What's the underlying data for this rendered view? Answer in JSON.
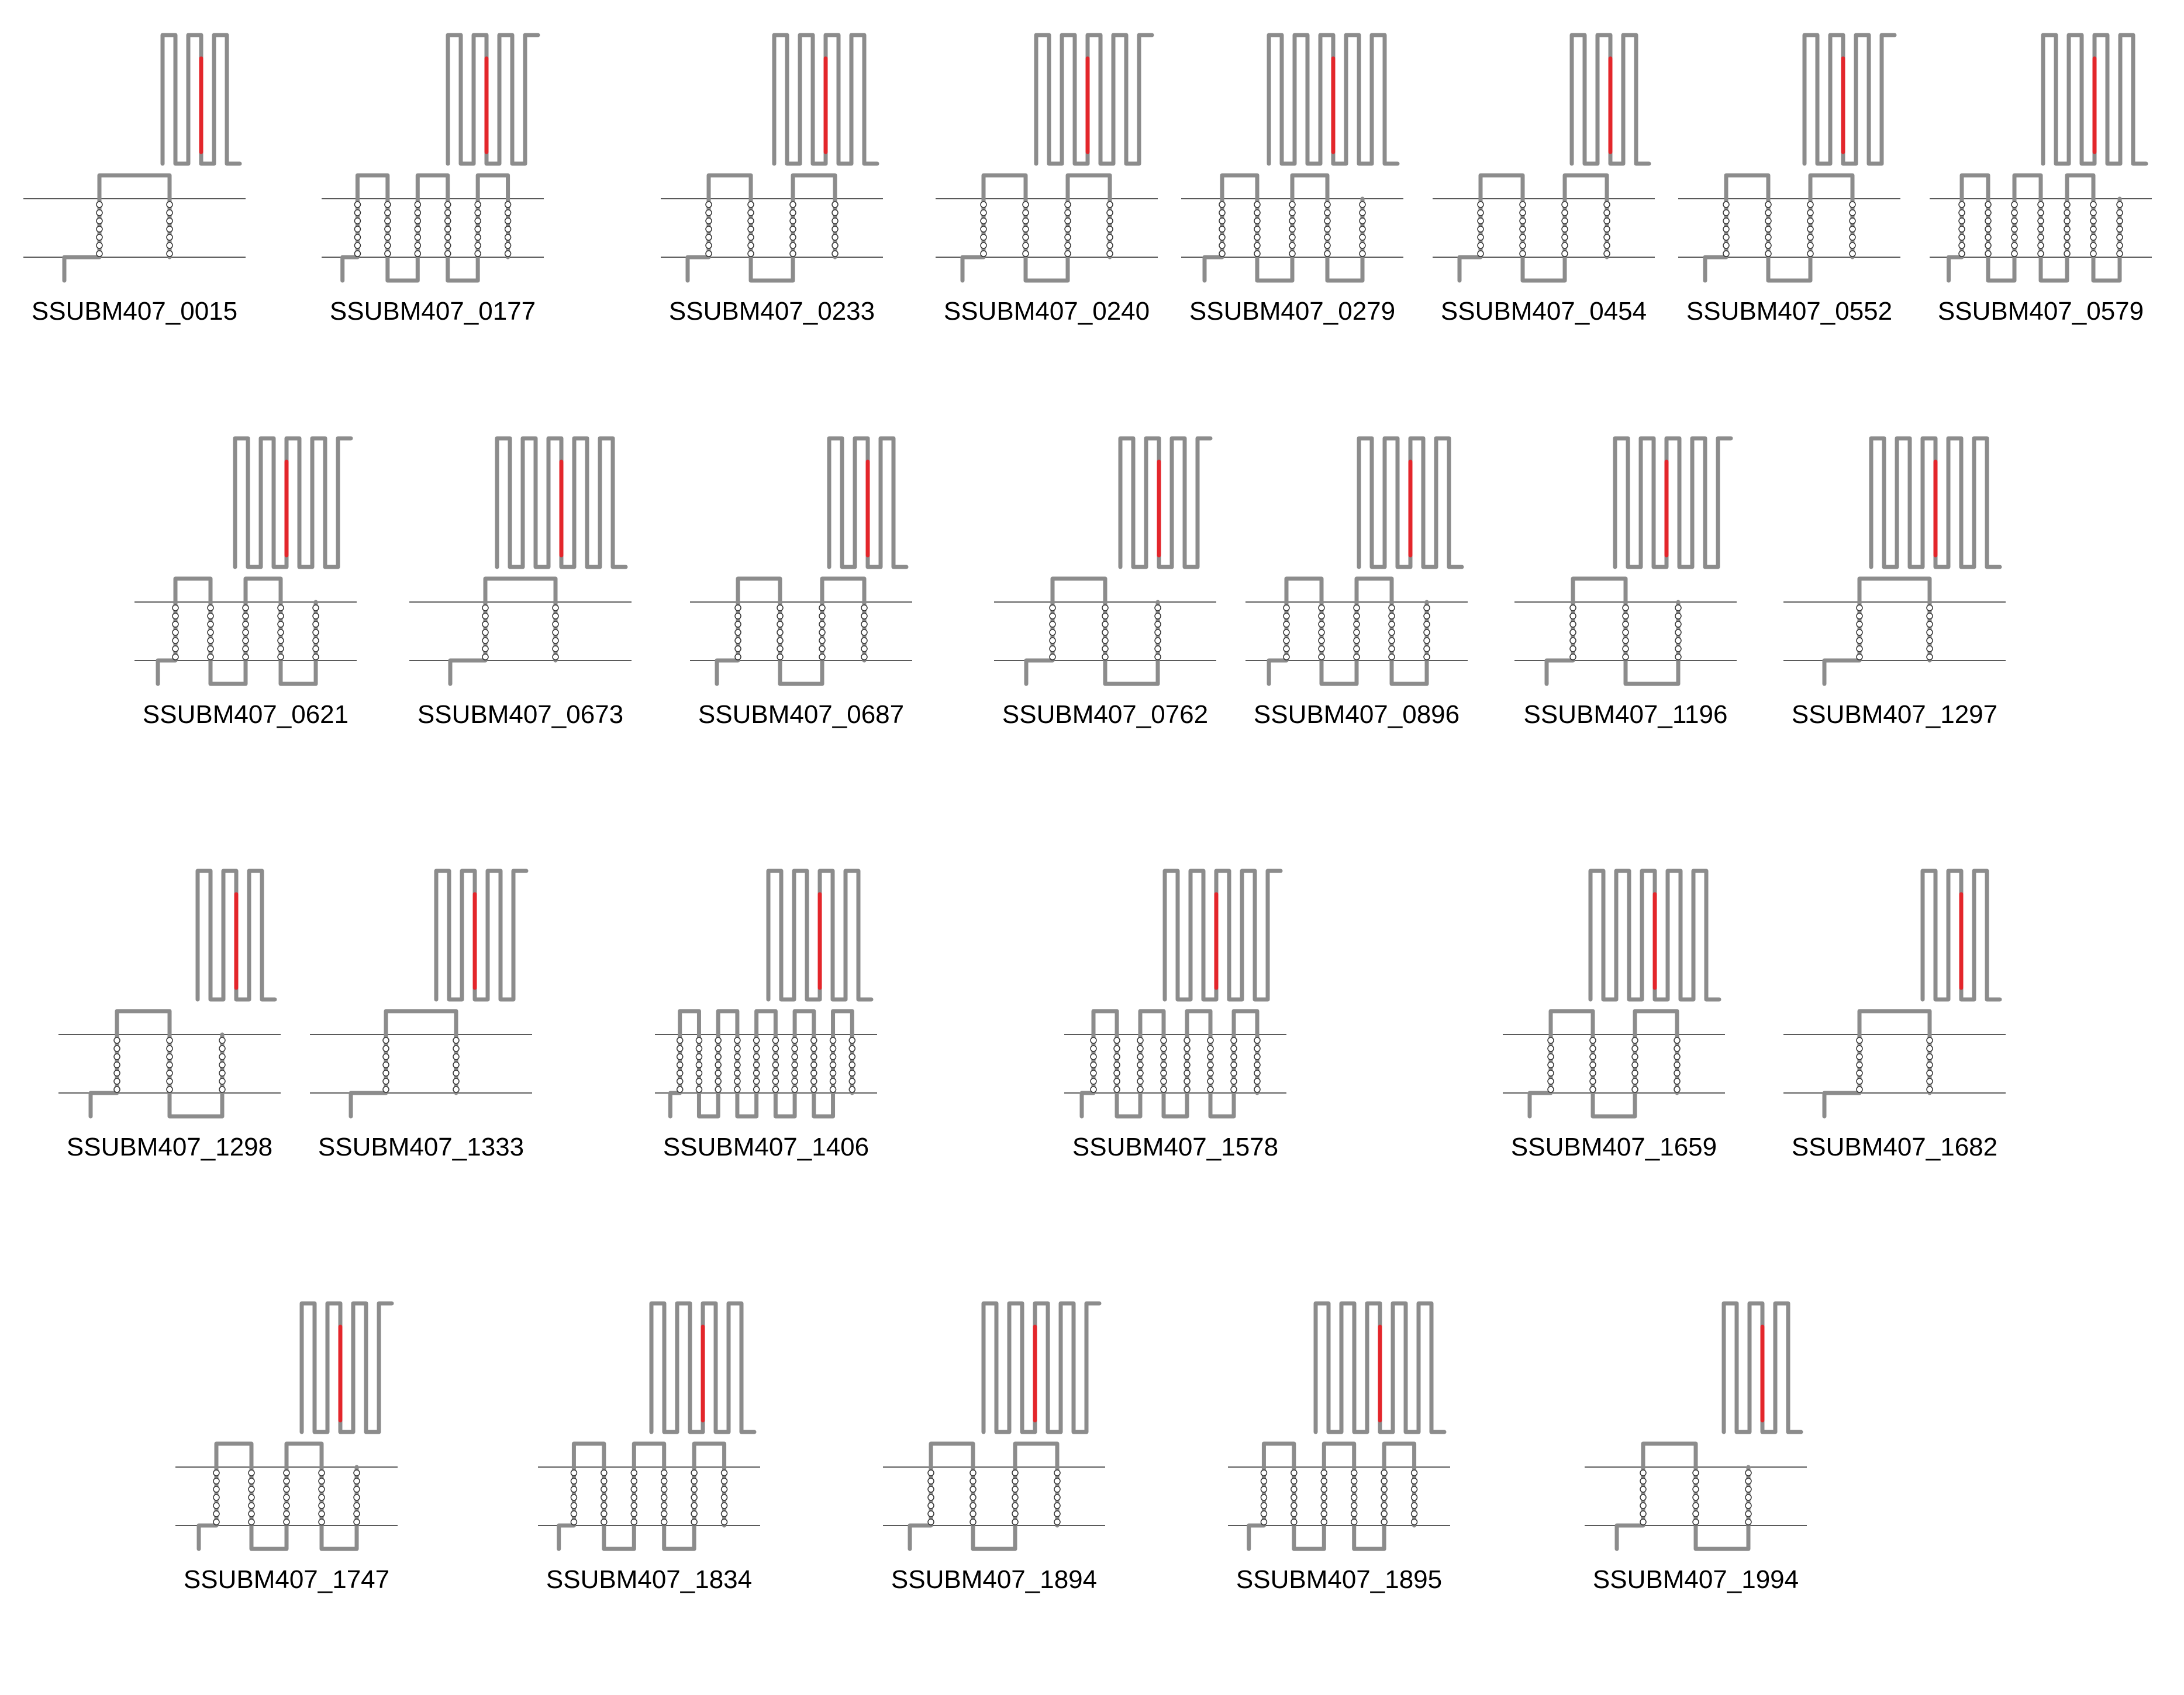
{
  "figure": {
    "description_free": true,
    "colors": {
      "residue": "#8c8c8c",
      "highlight": "#e3262b",
      "membrane": "#5a5a5a"
    },
    "panels": [
      {
        "label": "SSUBM407_0015",
        "tm_helices": 2,
        "highlight": true
      },
      {
        "label": "SSUBM407_0177",
        "tm_helices": 6,
        "highlight": true
      },
      {
        "label": "SSUBM407_0233",
        "tm_helices": 4,
        "highlight": true
      },
      {
        "label": "SSUBM407_0240",
        "tm_helices": 4,
        "highlight": true
      },
      {
        "label": "SSUBM407_0279",
        "tm_helices": 5,
        "highlight": true
      },
      {
        "label": "SSUBM407_0454",
        "tm_helices": 4,
        "highlight": true
      },
      {
        "label": "SSUBM407_0552",
        "tm_helices": 4,
        "highlight": true
      },
      {
        "label": "SSUBM407_0579",
        "tm_helices": 7,
        "highlight": true
      },
      {
        "label": "SSUBM407_0621",
        "tm_helices": 5,
        "highlight": true
      },
      {
        "label": "SSUBM407_0673",
        "tm_helices": 2,
        "highlight": true
      },
      {
        "label": "SSUBM407_0687",
        "tm_helices": 4,
        "highlight": true
      },
      {
        "label": "SSUBM407_0762",
        "tm_helices": 3,
        "highlight": true
      },
      {
        "label": "SSUBM407_0896",
        "tm_helices": 5,
        "highlight": true
      },
      {
        "label": "SSUBM407_1196",
        "tm_helices": 3,
        "highlight": true
      },
      {
        "label": "SSUBM407_1297",
        "tm_helices": 2,
        "highlight": true
      },
      {
        "label": "SSUBM407_1298",
        "tm_helices": 3,
        "highlight": true
      },
      {
        "label": "SSUBM407_1333",
        "tm_helices": 2,
        "highlight": true
      },
      {
        "label": "SSUBM407_1406",
        "tm_helices": 10,
        "highlight": true
      },
      {
        "label": "SSUBM407_1578",
        "tm_helices": 8,
        "highlight": true
      },
      {
        "label": "SSUBM407_1659",
        "tm_helices": 4,
        "highlight": true
      },
      {
        "label": "SSUBM407_1682",
        "tm_helices": 2,
        "highlight": true
      },
      {
        "label": "SSUBM407_1747",
        "tm_helices": 5,
        "highlight": true
      },
      {
        "label": "SSUBM407_1834",
        "tm_helices": 6,
        "highlight": true
      },
      {
        "label": "SSUBM407_1894",
        "tm_helices": 4,
        "highlight": true
      },
      {
        "label": "SSUBM407_1895",
        "tm_helices": 6,
        "highlight": true
      },
      {
        "label": "SSUBM407_1994",
        "tm_helices": 3,
        "highlight": true
      }
    ]
  }
}
